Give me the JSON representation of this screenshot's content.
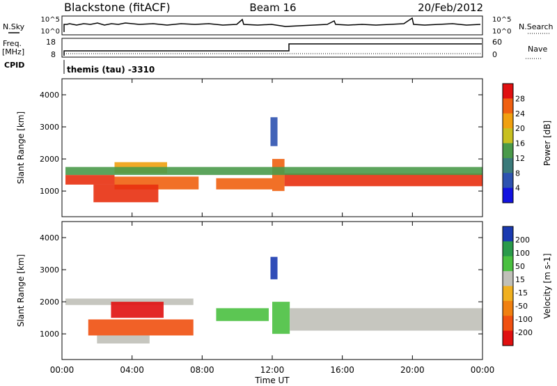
{
  "header": {
    "station": "Blackstone (fitACF)",
    "beam": "Beam 16",
    "date": "20/Feb/2012"
  },
  "params_panel": {
    "nsky_label": "N.Sky",
    "nsky_ticks": [
      "10^5",
      "10^0"
    ],
    "nsearch_label": "N.Search",
    "nsearch_ticks": [
      "10^5",
      "10^0"
    ],
    "freq_label": "Freq.",
    "freq_unit": "[MHz]",
    "freq_ticks": [
      "18",
      "8"
    ],
    "nave_label": "Nave",
    "nave_ticks": [
      "60",
      "0"
    ],
    "cpid_label": "CPID",
    "cpid_text": "themis (tau) -3310"
  },
  "chart_data": [
    {
      "type": "heatmap",
      "name": "Power",
      "ylabel": "Slant Range [km]",
      "yticks": [
        "4000",
        "3000",
        "2000",
        "1000"
      ],
      "ylim": [
        200,
        4500
      ],
      "xticks": [
        "00:00",
        "04:00",
        "08:00",
        "12:00",
        "16:00",
        "20:00",
        "00:00"
      ],
      "xlim_hours": [
        0,
        24
      ],
      "colorbar": {
        "label": "Power [dB]",
        "ticks": [
          "28",
          "24",
          "20",
          "16",
          "12",
          "8",
          "4"
        ],
        "range": [
          0,
          32
        ],
        "colors": [
          "#1212e0",
          "#2d52b0",
          "#3a7a7a",
          "#4a9a4a",
          "#c8c020",
          "#f0a010",
          "#f06010",
          "#e01010"
        ]
      },
      "bands": [
        {
          "t0": 0.2,
          "t1": 3.0,
          "r0": 1200,
          "r1": 1500,
          "color": "#e83010"
        },
        {
          "t0": 3.0,
          "t1": 7.8,
          "r0": 1050,
          "r1": 1450,
          "color": "#f06010"
        },
        {
          "t0": 1.8,
          "t1": 5.5,
          "r0": 650,
          "r1": 1200,
          "color": "#e83010"
        },
        {
          "t0": 3.0,
          "t1": 6.0,
          "r0": 1550,
          "r1": 1900,
          "color": "#f0a010"
        },
        {
          "t0": 8.8,
          "t1": 12.0,
          "r0": 1050,
          "r1": 1400,
          "color": "#f06010"
        },
        {
          "t0": 12.0,
          "t1": 12.7,
          "r0": 1000,
          "r1": 2000,
          "color": "#f06010"
        },
        {
          "t0": 12.7,
          "t1": 24.0,
          "r0": 1150,
          "r1": 1550,
          "color": "#e83010"
        },
        {
          "t0": 0.2,
          "t1": 24.0,
          "r0": 1500,
          "r1": 1750,
          "color": "#4a9a4a"
        },
        {
          "t0": 11.9,
          "t1": 12.3,
          "r0": 2400,
          "r1": 3300,
          "color": "#2d52b0"
        }
      ]
    },
    {
      "type": "heatmap",
      "name": "Velocity",
      "ylabel": "Slant Range [km]",
      "yticks": [
        "4000",
        "3000",
        "2000",
        "1000"
      ],
      "ylim": [
        200,
        4500
      ],
      "xticks": [
        "00:00",
        "04:00",
        "08:00",
        "12:00",
        "16:00",
        "20:00",
        "00:00"
      ],
      "xlim_hours": [
        0,
        24
      ],
      "xlabel": "Time UT",
      "colorbar": {
        "label": "Velocity [m s-1]",
        "ticks": [
          "200",
          "100",
          "50",
          "15",
          "-15",
          "-50",
          "-100",
          "-200"
        ],
        "range": [
          -250,
          250
        ],
        "colors": [
          "#e01010",
          "#f05010",
          "#f08010",
          "#f0b020",
          "#c0c0b8",
          "#4ac040",
          "#2a9a4a",
          "#1a3ab0"
        ]
      },
      "bands": [
        {
          "t0": 0.2,
          "t1": 7.5,
          "r0": 1900,
          "r1": 2100,
          "color": "#c0c0b8"
        },
        {
          "t0": 2.8,
          "t1": 5.8,
          "r0": 1500,
          "r1": 2000,
          "color": "#e01010"
        },
        {
          "t0": 1.5,
          "t1": 7.5,
          "r0": 950,
          "r1": 1450,
          "color": "#f05010"
        },
        {
          "t0": 2.0,
          "t1": 5.0,
          "r0": 700,
          "r1": 950,
          "color": "#c0c0b8"
        },
        {
          "t0": 8.8,
          "t1": 11.8,
          "r0": 1400,
          "r1": 1800,
          "color": "#4ac040"
        },
        {
          "t0": 11.9,
          "t1": 12.3,
          "r0": 2700,
          "r1": 3400,
          "color": "#1a3ab0"
        },
        {
          "t0": 12.0,
          "t1": 13.0,
          "r0": 1000,
          "r1": 2000,
          "color": "#4ac040"
        },
        {
          "t0": 13.0,
          "t1": 24.0,
          "r0": 1100,
          "r1": 1800,
          "color": "#c0c0b8"
        }
      ]
    }
  ],
  "colors": {
    "line": "#000000",
    "background": "#ffffff"
  }
}
